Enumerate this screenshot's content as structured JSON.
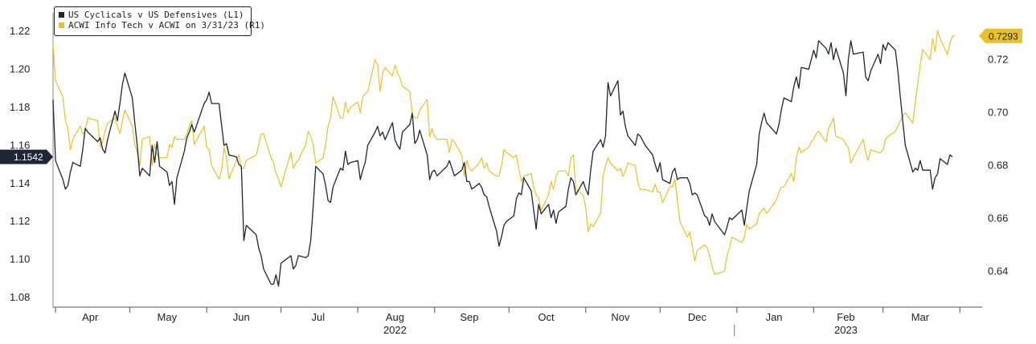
{
  "chart_data": {
    "type": "line",
    "x_dates": [
      "2022-03-31",
      "2022-04-01",
      "2022-04-04",
      "2022-04-05",
      "2022-04-06",
      "2022-04-07",
      "2022-04-08",
      "2022-04-11",
      "2022-04-12",
      "2022-04-13",
      "2022-04-14",
      "2022-04-18",
      "2022-04-19",
      "2022-04-20",
      "2022-04-21",
      "2022-04-22",
      "2022-04-25",
      "2022-04-26",
      "2022-04-27",
      "2022-04-28",
      "2022-04-29",
      "2022-05-02",
      "2022-05-03",
      "2022-05-04",
      "2022-05-05",
      "2022-05-06",
      "2022-05-09",
      "2022-05-10",
      "2022-05-11",
      "2022-05-12",
      "2022-05-13",
      "2022-05-16",
      "2022-05-17",
      "2022-05-18",
      "2022-05-19",
      "2022-05-20",
      "2022-05-23",
      "2022-05-24",
      "2022-05-25",
      "2022-05-26",
      "2022-05-27",
      "2022-05-31",
      "2022-06-01",
      "2022-06-02",
      "2022-06-03",
      "2022-06-06",
      "2022-06-07",
      "2022-06-08",
      "2022-06-09",
      "2022-06-10",
      "2022-06-13",
      "2022-06-14",
      "2022-06-15",
      "2022-06-16",
      "2022-06-17",
      "2022-06-21",
      "2022-06-22",
      "2022-06-23",
      "2022-06-24",
      "2022-06-27",
      "2022-06-28",
      "2022-06-29",
      "2022-06-30",
      "2022-07-01",
      "2022-07-05",
      "2022-07-06",
      "2022-07-07",
      "2022-07-08",
      "2022-07-11",
      "2022-07-12",
      "2022-07-13",
      "2022-07-14",
      "2022-07-15",
      "2022-07-18",
      "2022-07-19",
      "2022-07-20",
      "2022-07-21",
      "2022-07-22",
      "2022-07-25",
      "2022-07-26",
      "2022-07-27",
      "2022-07-28",
      "2022-07-29",
      "2022-08-01",
      "2022-08-02",
      "2022-08-03",
      "2022-08-04",
      "2022-08-05",
      "2022-08-08",
      "2022-08-09",
      "2022-08-10",
      "2022-08-11",
      "2022-08-12",
      "2022-08-15",
      "2022-08-16",
      "2022-08-17",
      "2022-08-18",
      "2022-08-19",
      "2022-08-22",
      "2022-08-23",
      "2022-08-24",
      "2022-08-25",
      "2022-08-26",
      "2022-08-29",
      "2022-08-30",
      "2022-08-31",
      "2022-09-01",
      "2022-09-02",
      "2022-09-06",
      "2022-09-07",
      "2022-09-08",
      "2022-09-09",
      "2022-09-12",
      "2022-09-13",
      "2022-09-14",
      "2022-09-15",
      "2022-09-16",
      "2022-09-19",
      "2022-09-20",
      "2022-09-21",
      "2022-09-22",
      "2022-09-23",
      "2022-09-26",
      "2022-09-27",
      "2022-09-28",
      "2022-09-29",
      "2022-09-30",
      "2022-10-03",
      "2022-10-04",
      "2022-10-05",
      "2022-10-06",
      "2022-10-07",
      "2022-10-10",
      "2022-10-11",
      "2022-10-12",
      "2022-10-13",
      "2022-10-14",
      "2022-10-17",
      "2022-10-18",
      "2022-10-19",
      "2022-10-20",
      "2022-10-21",
      "2022-10-24",
      "2022-10-25",
      "2022-10-26",
      "2022-10-27",
      "2022-10-28",
      "2022-10-31",
      "2022-11-01",
      "2022-11-02",
      "2022-11-03",
      "2022-11-04",
      "2022-11-07",
      "2022-11-08",
      "2022-11-09",
      "2022-11-10",
      "2022-11-11",
      "2022-11-14",
      "2022-11-15",
      "2022-11-16",
      "2022-11-17",
      "2022-11-18",
      "2022-11-21",
      "2022-11-22",
      "2022-11-23",
      "2022-11-25",
      "2022-11-28",
      "2022-11-29",
      "2022-11-30",
      "2022-12-01",
      "2022-12-02",
      "2022-12-05",
      "2022-12-06",
      "2022-12-07",
      "2022-12-08",
      "2022-12-09",
      "2022-12-12",
      "2022-12-13",
      "2022-12-14",
      "2022-12-15",
      "2022-12-16",
      "2022-12-19",
      "2022-12-20",
      "2022-12-21",
      "2022-12-22",
      "2022-12-23",
      "2022-12-27",
      "2022-12-28",
      "2022-12-29",
      "2022-12-30",
      "2023-01-03",
      "2023-01-04",
      "2023-01-05",
      "2023-01-06",
      "2023-01-09",
      "2023-01-10",
      "2023-01-11",
      "2023-01-12",
      "2023-01-13",
      "2023-01-17",
      "2023-01-18",
      "2023-01-19",
      "2023-01-20",
      "2023-01-23",
      "2023-01-24",
      "2023-01-25",
      "2023-01-26",
      "2023-01-27",
      "2023-01-30",
      "2023-01-31",
      "2023-02-01",
      "2023-02-02",
      "2023-02-03",
      "2023-02-06",
      "2023-02-07",
      "2023-02-08",
      "2023-02-09",
      "2023-02-10",
      "2023-02-13",
      "2023-02-14",
      "2023-02-15",
      "2023-02-16",
      "2023-02-17",
      "2023-02-21",
      "2023-02-22",
      "2023-02-23",
      "2023-02-24",
      "2023-02-27",
      "2023-02-28",
      "2023-03-01",
      "2023-03-02",
      "2023-03-03",
      "2023-03-06",
      "2023-03-07",
      "2023-03-08",
      "2023-03-09",
      "2023-03-10",
      "2023-03-13",
      "2023-03-14",
      "2023-03-15",
      "2023-03-16",
      "2023-03-17",
      "2023-03-20",
      "2023-03-21",
      "2023-03-22",
      "2023-03-23",
      "2023-03-24",
      "2023-03-27",
      "2023-03-28",
      "2023-03-29",
      "2023-03-30",
      "2023-03-31"
    ],
    "x_ticks": [
      {
        "label": "Apr",
        "date": "2022-04-15"
      },
      {
        "label": "May",
        "date": "2022-05-16"
      },
      {
        "label": "Jun",
        "date": "2022-06-15"
      },
      {
        "label": "Jul",
        "date": "2022-07-16"
      },
      {
        "label": "Aug",
        "date": "2022-08-16"
      },
      {
        "label": "Sep",
        "date": "2022-09-15"
      },
      {
        "label": "Oct",
        "date": "2022-10-16"
      },
      {
        "label": "Nov",
        "date": "2022-11-15"
      },
      {
        "label": "Dec",
        "date": "2022-12-16"
      },
      {
        "label": "Jan",
        "date": "2023-01-16"
      },
      {
        "label": "Feb",
        "date": "2023-02-14"
      },
      {
        "label": "Mar",
        "date": "2023-03-16"
      }
    ],
    "year_labels": [
      {
        "label": "2022",
        "date": "2022-08-16"
      },
      {
        "label": "2023",
        "date": "2023-02-14"
      }
    ],
    "x_range": [
      "2022-03-31",
      "2023-04-10"
    ],
    "year_divider_date": "2022-12-31",
    "y_left": {
      "min": 1.075,
      "max": 1.228,
      "ticks": [
        1.08,
        1.1,
        1.12,
        1.14,
        1.16,
        1.18,
        1.2,
        1.22
      ],
      "tick_labels": [
        "1.08",
        "1.10",
        "1.12",
        "1.14",
        "1.16",
        "1.18",
        "1.20",
        "1.22"
      ]
    },
    "y_right": {
      "min": 0.6266,
      "max": 0.7365,
      "ticks": [
        0.64,
        0.66,
        0.68,
        0.7,
        0.72
      ],
      "tick_labels": [
        "0.64",
        "0.66",
        "0.68",
        "0.70",
        "0.72"
      ]
    },
    "grid": false,
    "legend_position": "top-left",
    "series": [
      {
        "name": "US Cyclicals v US Defensives (L1)",
        "axis": "left",
        "color": "#1c2634",
        "last_label": "1.1542",
        "values": [
          1.184,
          1.152,
          1.142,
          1.137,
          1.139,
          1.146,
          1.151,
          1.149,
          1.158,
          1.169,
          1.167,
          1.162,
          1.164,
          1.158,
          1.156,
          1.163,
          1.178,
          1.173,
          1.182,
          1.192,
          1.198,
          1.185,
          1.172,
          1.16,
          1.144,
          1.148,
          1.144,
          1.16,
          1.151,
          1.162,
          1.149,
          1.146,
          1.139,
          1.141,
          1.129,
          1.143,
          1.157,
          1.164,
          1.167,
          1.171,
          1.167,
          1.182,
          1.184,
          1.188,
          1.182,
          1.182,
          1.171,
          1.16,
          1.161,
          1.155,
          1.154,
          1.15,
          1.149,
          1.11,
          1.118,
          1.113,
          1.106,
          1.102,
          1.095,
          1.087,
          1.087,
          1.092,
          1.086,
          1.098,
          1.102,
          1.095,
          1.097,
          1.102,
          1.101,
          1.102,
          1.11,
          1.128,
          1.149,
          1.145,
          1.139,
          1.131,
          1.13,
          1.138,
          1.148,
          1.147,
          1.157,
          1.15,
          1.151,
          1.152,
          1.142,
          1.147,
          1.151,
          1.16,
          1.167,
          1.17,
          1.165,
          1.167,
          1.163,
          1.172,
          1.163,
          1.16,
          1.158,
          1.167,
          1.171,
          1.177,
          1.161,
          1.163,
          1.168,
          1.155,
          1.142,
          1.146,
          1.147,
          1.144,
          1.149,
          1.152,
          1.148,
          1.144,
          1.147,
          1.151,
          1.141,
          1.141,
          1.137,
          1.14,
          1.138,
          1.134,
          1.133,
          1.128,
          1.115,
          1.107,
          1.112,
          1.118,
          1.12,
          1.123,
          1.132,
          1.135,
          1.134,
          1.143,
          1.136,
          1.126,
          1.116,
          1.129,
          1.124,
          1.129,
          1.122,
          1.126,
          1.119,
          1.125,
          1.128,
          1.137,
          1.143,
          1.141,
          1.134,
          1.141,
          1.137,
          1.134,
          1.147,
          1.157,
          1.163,
          1.159,
          1.165,
          1.193,
          1.186,
          1.194,
          1.176,
          1.178,
          1.17,
          1.165,
          1.16,
          1.166,
          1.165,
          1.16,
          1.155,
          1.15,
          1.146,
          1.151,
          1.142,
          1.14,
          1.146,
          1.148,
          1.142,
          1.143,
          1.143,
          1.14,
          1.134,
          1.135,
          1.134,
          1.123,
          1.122,
          1.118,
          1.124,
          1.12,
          1.113,
          1.117,
          1.122,
          1.121,
          1.126,
          1.118,
          1.127,
          1.136,
          1.15,
          1.166,
          1.172,
          1.177,
          1.172,
          1.166,
          1.171,
          1.179,
          1.185,
          1.183,
          1.191,
          1.196,
          1.19,
          1.201,
          1.2,
          1.205,
          1.21,
          1.206,
          1.215,
          1.211,
          1.208,
          1.214,
          1.205,
          1.211,
          1.198,
          1.186,
          1.205,
          1.215,
          1.208,
          1.209,
          1.196,
          1.194,
          1.199,
          1.208,
          1.203,
          1.213,
          1.21,
          1.214,
          1.21,
          1.199,
          1.185,
          1.172,
          1.16,
          1.146,
          1.148,
          1.147,
          1.152,
          1.147,
          1.147,
          1.137,
          1.143,
          1.145,
          1.153,
          1.15,
          1.155,
          1.154
        ]
      },
      {
        "name": "ACWI Info Tech v ACWI on 3/31/23 (R1)",
        "axis": "right",
        "color": "#e8c12e",
        "last_label": "0.7293",
        "values": [
          0.726,
          0.712,
          0.706,
          0.697,
          0.694,
          0.686,
          0.69,
          0.695,
          0.692,
          0.693,
          0.698,
          0.697,
          0.687,
          0.689,
          0.693,
          0.696,
          0.698,
          0.695,
          0.692,
          0.697,
          0.701,
          0.695,
          0.688,
          0.685,
          0.68,
          0.69,
          0.691,
          0.68,
          0.688,
          0.684,
          0.683,
          0.683,
          0.688,
          0.687,
          0.691,
          0.69,
          0.69,
          0.692,
          0.695,
          0.697,
          0.688,
          0.695,
          0.687,
          0.686,
          0.68,
          0.675,
          0.678,
          0.687,
          0.683,
          0.675,
          0.682,
          0.684,
          0.679,
          0.679,
          0.682,
          0.684,
          0.688,
          0.692,
          0.692,
          0.683,
          0.681,
          0.677,
          0.675,
          0.672,
          0.685,
          0.679,
          0.681,
          0.682,
          0.688,
          0.693,
          0.691,
          0.688,
          0.681,
          0.683,
          0.688,
          0.695,
          0.698,
          0.706,
          0.698,
          0.698,
          0.704,
          0.7,
          0.702,
          0.704,
          0.7,
          0.706,
          0.707,
          0.708,
          0.72,
          0.718,
          0.708,
          0.715,
          0.717,
          0.714,
          0.718,
          0.715,
          0.713,
          0.71,
          0.708,
          0.699,
          0.698,
          0.698,
          0.701,
          0.705,
          0.691,
          0.694,
          0.691,
          0.69,
          0.69,
          0.685,
          0.69,
          0.689,
          0.684,
          0.676,
          0.682,
          0.679,
          0.678,
          0.681,
          0.683,
          0.679,
          0.681,
          0.678,
          0.676,
          0.676,
          0.68,
          0.686,
          0.685,
          0.683,
          0.684,
          0.679,
          0.674,
          0.676,
          0.677,
          0.672,
          0.669,
          0.668,
          0.663,
          0.669,
          0.674,
          0.671,
          0.676,
          0.678,
          0.678,
          0.676,
          0.683,
          0.684,
          0.671,
          0.669,
          0.664,
          0.655,
          0.658,
          0.657,
          0.662,
          0.676,
          0.68,
          0.683,
          0.681,
          0.678,
          0.679,
          0.676,
          0.678,
          0.681,
          0.68,
          0.674,
          0.671,
          0.671,
          0.67,
          0.673,
          0.67,
          0.67,
          0.666,
          0.672,
          0.672,
          0.675,
          0.667,
          0.659,
          0.653,
          0.655,
          0.65,
          0.644,
          0.648,
          0.65,
          0.649,
          0.646,
          0.642,
          0.639,
          0.64,
          0.646,
          0.649,
          0.653,
          0.651,
          0.653,
          0.658,
          0.656,
          0.658,
          0.662,
          0.663,
          0.664,
          0.662,
          0.667,
          0.67,
          0.672,
          0.672,
          0.677,
          0.674,
          0.683,
          0.687,
          0.685,
          0.687,
          0.689,
          0.69,
          0.692,
          0.693,
          0.689,
          0.694,
          0.696,
          0.698,
          0.691,
          0.69,
          0.688,
          0.687,
          0.681,
          0.683,
          0.69,
          0.685,
          0.682,
          0.686,
          0.685,
          0.685,
          0.686,
          0.69,
          0.691,
          0.693,
          0.695,
          0.697,
          0.699,
          0.7,
          0.696,
          0.704,
          0.711,
          0.718,
          0.724,
          0.72,
          0.728,
          0.723,
          0.731,
          0.728,
          0.722,
          0.726,
          0.729,
          0.729
        ]
      }
    ]
  }
}
